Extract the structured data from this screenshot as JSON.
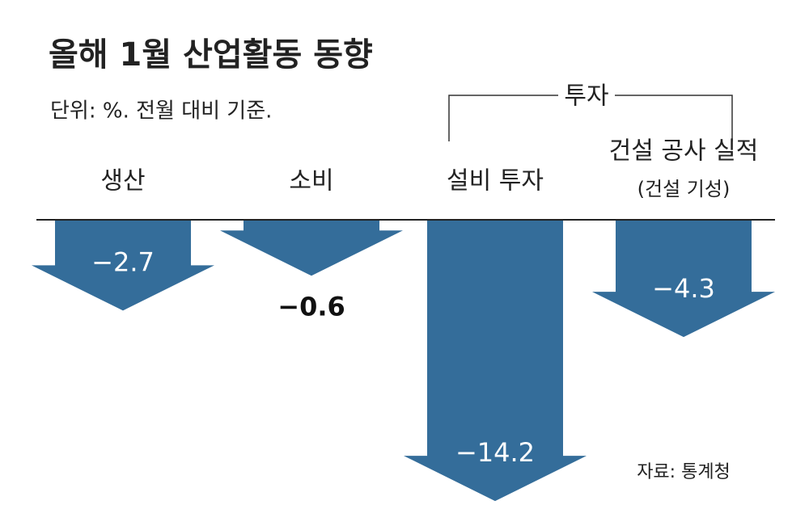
{
  "chart_data": {
    "type": "arrow",
    "title": "올해 1월 산업활동 동향",
    "subtitle": "단위: %. 전월 대비 기준.",
    "group_label": "투자",
    "categories": [
      "생산",
      "소비",
      "설비 투자",
      "건설 공사 실적"
    ],
    "category_note": "(건설 기성)",
    "values": [
      -2.7,
      -0.6,
      -14.2,
      -4.3
    ],
    "value_labels": [
      "−2.7",
      "−0.6",
      "−14.2",
      "−4.3"
    ],
    "color": "#346d9a",
    "source": "자료: 통계청"
  }
}
